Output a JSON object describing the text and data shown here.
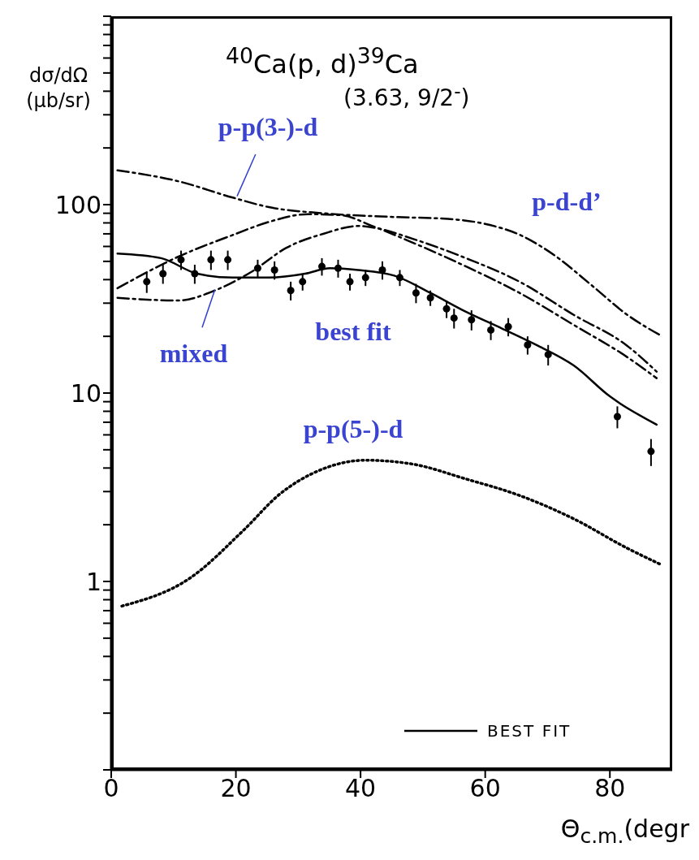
{
  "chart_data": {
    "type": "line",
    "title": "$^{40}$Ca(p, d)$^{39}$Ca",
    "subtitle": "(3.63, 9/2$^{-}$)",
    "xlabel": "Θ$_{c.m.}$(degr",
    "ylabel": "dσ/dΩ (μb/sr)",
    "log": "y",
    "legend": "bottom right",
    "grid": false,
    "xlim": [
      0,
      90
    ],
    "xticks": [
      0,
      20,
      40,
      60,
      80
    ],
    "ylim": [
      0.1,
      1000
    ],
    "yticks": [
      {
        "value": 0.1,
        "label": null
      },
      {
        "value": 0.2,
        "label": null
      },
      {
        "value": 0.3,
        "label": null
      },
      {
        "value": 0.4,
        "label": null
      },
      {
        "value": 0.5,
        "label": null
      },
      {
        "value": 0.6,
        "label": null
      },
      {
        "value": 0.7,
        "label": null
      },
      {
        "value": 0.8,
        "label": null
      },
      {
        "value": 0.9,
        "label": null
      },
      1,
      {
        "value": 2,
        "label": null
      },
      {
        "value": 3,
        "label": null
      },
      {
        "value": 4,
        "label": null
      },
      {
        "value": 5,
        "label": null
      },
      {
        "value": 6,
        "label": null
      },
      {
        "value": 7,
        "label": null
      },
      {
        "value": 8,
        "label": null
      },
      {
        "value": 9,
        "label": null
      },
      10,
      {
        "value": 20,
        "label": null
      },
      {
        "value": 30,
        "label": null
      },
      {
        "value": 40,
        "label": null
      },
      {
        "value": 50,
        "label": null
      },
      {
        "value": 60,
        "label": null
      },
      {
        "value": 70,
        "label": null
      },
      {
        "value": 80,
        "label": null
      },
      {
        "value": 90,
        "label": null
      },
      100,
      {
        "value": 200,
        "label": null
      },
      {
        "value": 300,
        "label": null
      },
      {
        "value": 400,
        "label": null
      },
      {
        "value": 500,
        "label": null
      },
      {
        "value": 600,
        "label": null
      },
      {
        "value": 700,
        "label": null
      },
      {
        "value": 800,
        "label": null
      },
      {
        "value": 900,
        "label": null
      },
      {
        "value": 1000,
        "label": null
      }
    ],
    "series": [
      {
        "color": "#000000",
        "line_style": "dashed",
        "x": [
          1,
          10.8,
          19.5,
          25.3,
          34,
          45.4,
          54,
          60,
          65.6,
          71.4,
          77,
          82.8,
          88.4
        ],
        "values": [
          152,
          133,
          109,
          97,
          90,
          86,
          84,
          79,
          69,
          53,
          37.5,
          26,
          20
        ]
      },
      {
        "color": "#000000",
        "line_style": "dashed",
        "x": [
          1,
          10.8,
          19.5,
          25.3,
          31.6,
          36.8,
          41.9,
          48.3,
          56.9,
          65.5,
          74.2,
          82.8,
          87.5
        ],
        "values": [
          36,
          53,
          69,
          81,
          89,
          88,
          77,
          63,
          47,
          34,
          23,
          15.5,
          12
        ]
      },
      {
        "color": "#000000",
        "line_style": "dashed",
        "x": [
          1,
          10.8,
          16.6,
          22.5,
          28.1,
          34,
          39.6,
          42.6,
          48.3,
          56.9,
          65.5,
          74.2,
          82.8,
          87.5
        ],
        "values": [
          32,
          31,
          35,
          44,
          59,
          70,
          77,
          75,
          66,
          52,
          39,
          26,
          17.8,
          13
        ]
      },
      {
        "name": "BEST FIT",
        "color": "#000000",
        "line_style": "solid",
        "x": [
          1,
          8,
          13.8,
          19.5,
          25.3,
          31.1,
          35.1,
          39.6,
          45.4,
          51.2,
          56.9,
          62.7,
          68.5,
          74.2,
          80,
          87.5
        ],
        "values": [
          55,
          52,
          43,
          41,
          41,
          43,
          46,
          45,
          42,
          34,
          27,
          22,
          17.8,
          14,
          9.6,
          6.8
        ]
      },
      {
        "color": "#000000",
        "line_style": "dotted",
        "x": [
          1.7,
          12.6,
          21.3,
          27,
          34,
          40.8,
          48.3,
          56.9,
          65.5,
          74.2,
          82.8,
          88.4
        ],
        "values": [
          0.74,
          1.04,
          1.88,
          2.9,
          3.96,
          4.4,
          4.2,
          3.5,
          2.86,
          2.15,
          1.5,
          1.22
        ]
      },
      {
        "type": "scatter",
        "color": "#000000",
        "marker": "circle",
        "x": [
          5.7,
          8.3,
          11.2,
          13.4,
          16,
          18.7,
          23.5,
          26.2,
          28.8,
          30.7,
          33.8,
          36.4,
          38.3,
          40.8,
          43.5,
          46.3,
          48.9,
          51.2,
          53.8,
          55,
          57.8,
          60.9,
          63.7,
          66.8,
          70.1,
          81.2,
          86.6
        ],
        "values": [
          39,
          43,
          51,
          43,
          51,
          51,
          46,
          45,
          35,
          39,
          47,
          46,
          39,
          41,
          45,
          41,
          34,
          32,
          28,
          25,
          24.5,
          21.6,
          22.5,
          18,
          16,
          7.5,
          4.9
        ],
        "errors": [
          5,
          5,
          6,
          5,
          6,
          6,
          5,
          5,
          4,
          4,
          5,
          5,
          4,
          4,
          5,
          4,
          4,
          3,
          3,
          3,
          3,
          2.5,
          2.5,
          2,
          2,
          1,
          0.8
        ]
      }
    ],
    "annotations": [
      {
        "text": "p-p(3-)-d",
        "x": 20.2,
        "y": 110
      },
      "p-d-d’",
      {
        "text": "mixed",
        "x": 16.6,
        "y": 35
      },
      "best fit",
      "p-p(5-)-d"
    ]
  }
}
